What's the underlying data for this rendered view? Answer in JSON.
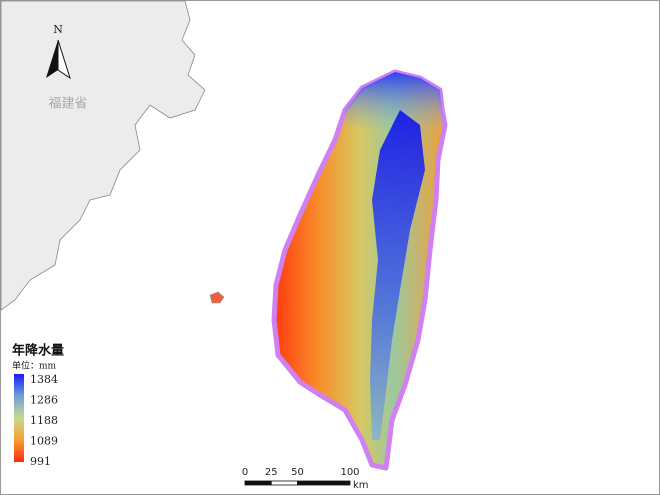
{
  "map": {
    "north_label": "N",
    "province_label": "福建省",
    "legend": {
      "title": "年降水量",
      "unit": "单位：mm",
      "labels": [
        1384,
        1286,
        1188,
        1089,
        991
      ]
    },
    "scale_bar": {
      "ticks": [
        0,
        25,
        50,
        100
      ],
      "unit": "km"
    }
  }
}
